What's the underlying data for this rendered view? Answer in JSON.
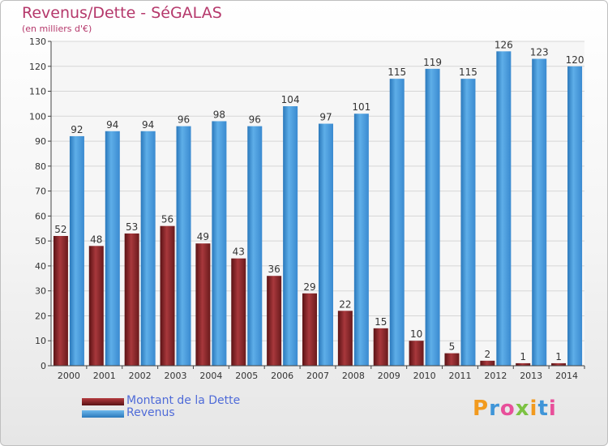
{
  "title": "Revenus/Dette - SéGALAS",
  "subtitle": "(en milliers d'€)",
  "chart_data": {
    "type": "bar",
    "categories": [
      "2000",
      "2001",
      "2002",
      "2003",
      "2004",
      "2005",
      "2006",
      "2007",
      "2008",
      "2009",
      "2010",
      "2011",
      "2012",
      "2013",
      "2014"
    ],
    "series": [
      {
        "name": "Montant de la Dette",
        "color": "#7a1f22",
        "values": [
          52,
          48,
          53,
          56,
          49,
          43,
          36,
          29,
          22,
          15,
          10,
          5,
          2,
          1,
          1
        ]
      },
      {
        "name": "Revenus",
        "color": "#3f95d8",
        "values": [
          92,
          94,
          94,
          96,
          98,
          96,
          104,
          97,
          101,
          115,
          119,
          115,
          126,
          123,
          120
        ]
      }
    ],
    "ylim": [
      0,
      130
    ],
    "yticks": [
      0,
      10,
      20,
      30,
      40,
      50,
      60,
      70,
      80,
      90,
      100,
      110,
      120,
      130
    ],
    "grid": true,
    "legend_position": "bottom-left"
  },
  "legend": {
    "debt_label": "Montant de la Dette",
    "revenue_label": "Revenus"
  },
  "logo": {
    "letters": [
      "P",
      "r",
      "o",
      "x",
      "i",
      "t",
      "i"
    ],
    "colors": [
      "#f29a1e",
      "#3f95d8",
      "#e84f9a",
      "#7cc242",
      "#f29a1e",
      "#3f95d8",
      "#e84f9a"
    ]
  }
}
